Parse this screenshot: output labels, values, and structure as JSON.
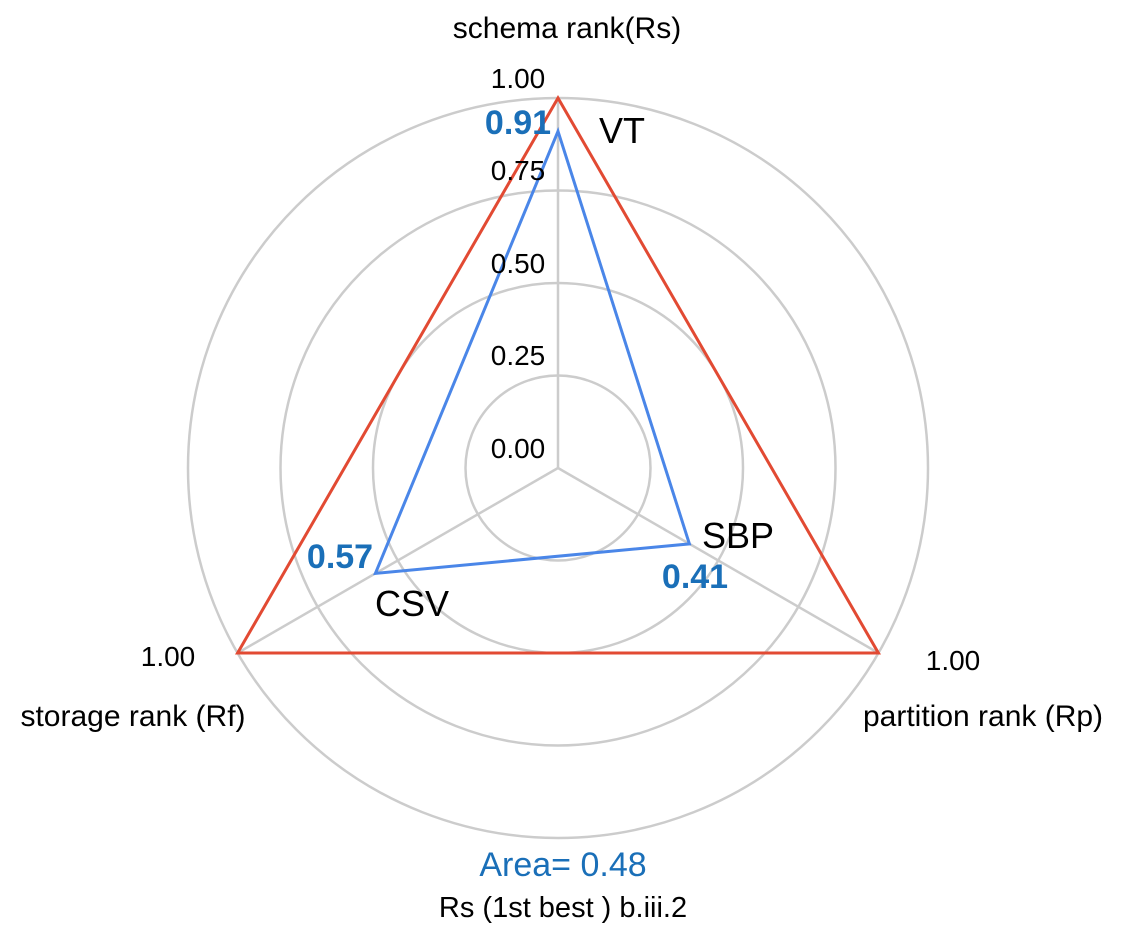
{
  "chart_data": {
    "type": "radar",
    "axes": [
      {
        "label": "schema rank(Rs)",
        "max_label": "1.00"
      },
      {
        "label": "partition rank (Rp)",
        "max_label": "1.00"
      },
      {
        "label": "storage rank (Rf)",
        "max_label": "1.00"
      }
    ],
    "ring_values": [
      0,
      0.25,
      0.5,
      0.75,
      1.0
    ],
    "ring_tick_labels": [
      "0.00",
      "0.25",
      "0.50",
      "0.75",
      "1.00"
    ],
    "series": [
      {
        "values": [
          1.0,
          1.0,
          1.0
        ],
        "color": "#e24a33"
      },
      {
        "values": [
          0.91,
          0.41,
          0.57
        ],
        "value_labels": [
          "0.91",
          "0.41",
          "0.57"
        ],
        "point_labels": [
          "VT",
          "SBP",
          "CSV"
        ],
        "color": "#4a86e8"
      }
    ],
    "area_label": "Area= 0.48",
    "caption": "Rs (1st best ) b.iii.2",
    "grid": true
  },
  "colors": {
    "grid": "#cccccc",
    "value_label": "#1a6fb8",
    "text": "#000000"
  }
}
